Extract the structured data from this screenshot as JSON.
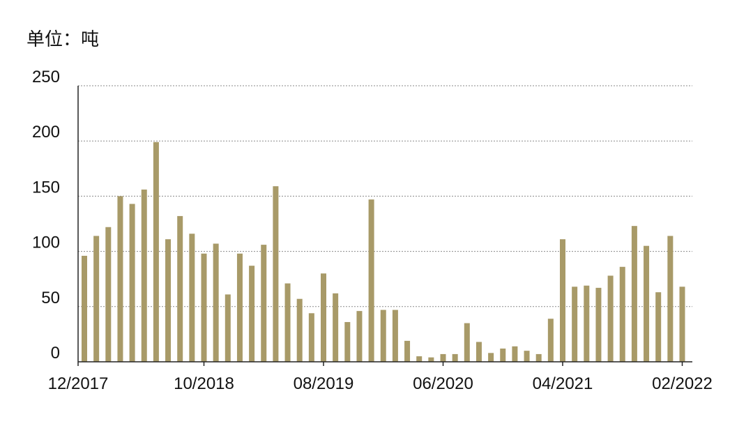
{
  "unit_label": "单位：吨",
  "chart_data": {
    "type": "bar",
    "ylabel": "单位：吨",
    "ylim": [
      0,
      250
    ],
    "yticks": [
      0,
      50,
      100,
      150,
      200,
      250
    ],
    "grid": true,
    "bar_color": "#a89a68",
    "x_tick_labels": [
      {
        "index": 0,
        "label": "12/2017"
      },
      {
        "index": 10,
        "label": "10/2018"
      },
      {
        "index": 20,
        "label": "08/2019"
      },
      {
        "index": 30,
        "label": "06/2020"
      },
      {
        "index": 40,
        "label": "04/2021"
      },
      {
        "index": 50,
        "label": "02/2022"
      }
    ],
    "categories": [
      "12/2017",
      "01/2018",
      "02/2018",
      "03/2018",
      "04/2018",
      "05/2018",
      "06/2018",
      "07/2018",
      "08/2018",
      "09/2018",
      "10/2018",
      "11/2018",
      "12/2018",
      "01/2019",
      "02/2019",
      "03/2019",
      "04/2019",
      "05/2019",
      "06/2019",
      "07/2019",
      "08/2019",
      "09/2019",
      "10/2019",
      "11/2019",
      "12/2019",
      "01/2020",
      "02/2020",
      "03/2020",
      "04/2020",
      "05/2020",
      "06/2020",
      "07/2020",
      "08/2020",
      "09/2020",
      "10/2020",
      "11/2020",
      "12/2020",
      "01/2021",
      "02/2021",
      "03/2021",
      "04/2021",
      "05/2021",
      "06/2021",
      "07/2021",
      "08/2021",
      "09/2021",
      "10/2021",
      "11/2021",
      "12/2021",
      "01/2022",
      "02/2022"
    ],
    "values": [
      96,
      114,
      122,
      150,
      143,
      156,
      199,
      111,
      132,
      116,
      98,
      107,
      61,
      98,
      87,
      106,
      159,
      71,
      57,
      44,
      80,
      62,
      36,
      46,
      147,
      47,
      47,
      19,
      5,
      4,
      7,
      7,
      35,
      18,
      8,
      12,
      14,
      10,
      7,
      39,
      111,
      68,
      69,
      67,
      78,
      86,
      123,
      105,
      63,
      114,
      68
    ]
  }
}
